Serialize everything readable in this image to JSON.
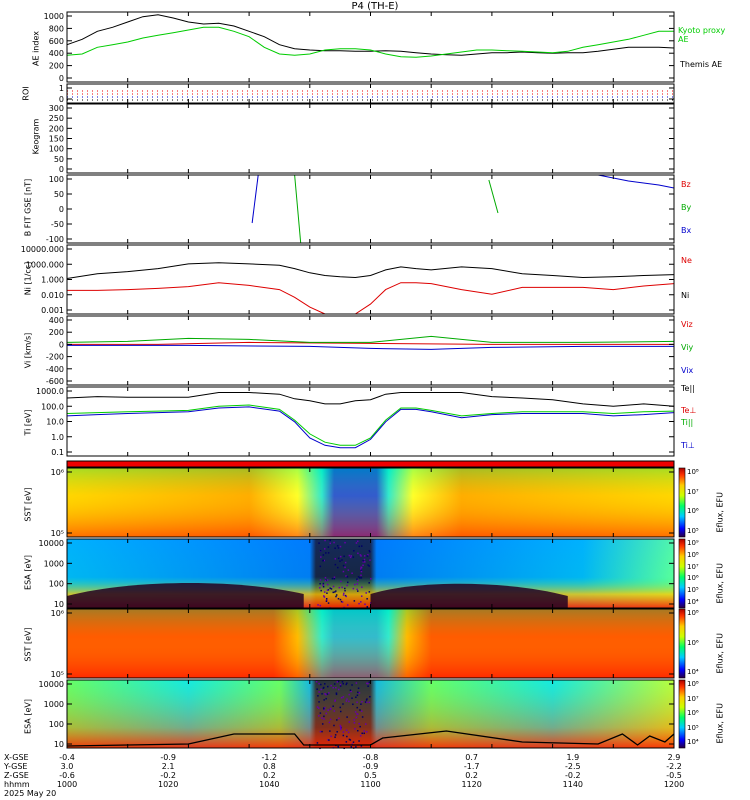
{
  "title": "P4 (TH-E)",
  "date_label": "2025 May 20",
  "chart_data": [
    {
      "type": "line",
      "panel": "ae",
      "ylabel": "AE index",
      "yticks": [
        "1000",
        "800",
        "600",
        "400",
        "200",
        "0"
      ],
      "ylim": [
        0,
        1050
      ],
      "x": [
        0,
        5,
        10,
        15,
        20,
        25,
        30,
        35,
        40,
        45,
        50,
        55,
        60,
        65,
        70,
        75,
        80,
        85,
        90,
        95,
        100,
        105,
        110,
        115,
        120,
        125,
        130,
        135,
        140,
        145,
        150,
        155,
        160,
        165,
        170,
        175,
        180,
        185,
        190,
        195,
        200
      ],
      "series": [
        {
          "name": "Themis AE",
          "color": "#000000",
          "values": [
            560,
            640,
            760,
            820,
            900,
            980,
            1010,
            960,
            900,
            870,
            880,
            840,
            760,
            680,
            560,
            500,
            480,
            470,
            470,
            460,
            460,
            470,
            460,
            440,
            420,
            410,
            400,
            420,
            440,
            440,
            450,
            440,
            430,
            440,
            440,
            460,
            490,
            520,
            520,
            520,
            510
          ]
        },
        {
          "name": "Kyoto proxy AE",
          "color": "#00cc00",
          "values": [
            400,
            420,
            520,
            560,
            600,
            660,
            700,
            740,
            780,
            820,
            820,
            760,
            680,
            520,
            420,
            400,
            420,
            480,
            500,
            500,
            480,
            420,
            380,
            370,
            390,
            420,
            450,
            480,
            480,
            470,
            460,
            450,
            440,
            460,
            520,
            560,
            600,
            640,
            700,
            760,
            760
          ]
        }
      ],
      "legend": [
        "Kyoto proxy AE",
        "Themis AE"
      ]
    },
    {
      "type": "scatter",
      "panel": "roi",
      "ylabel": "ROI",
      "yticks": [
        "1",
        "0"
      ]
    },
    {
      "type": "line",
      "panel": "keogram",
      "ylabel": "Keogram",
      "yticks": [
        "300",
        "250",
        "200",
        "150",
        "100",
        "50",
        "0"
      ]
    },
    {
      "type": "line",
      "panel": "bfield",
      "ylabel": "B FIT GSE [nT]",
      "yticks": [
        "100",
        "50",
        "0",
        "-50",
        "-100"
      ],
      "ylim": [
        -100,
        100
      ],
      "legend": [
        "Bz",
        "By",
        "Bx"
      ],
      "legend_colors": [
        "#dd0000",
        "#00aa00",
        "#0000cc"
      ]
    },
    {
      "type": "line",
      "panel": "density",
      "ylabel": "Ni [1/cc]",
      "yticks": [
        "10000.000",
        "1000.000",
        "1.000",
        "0.010",
        "0.001"
      ],
      "ylim_log": [
        0.001,
        10000
      ],
      "x": [
        0,
        10,
        20,
        30,
        40,
        50,
        60,
        70,
        75,
        80,
        85,
        90,
        95,
        100,
        105,
        110,
        115,
        120,
        130,
        140,
        150,
        160,
        170,
        180,
        190,
        200
      ],
      "series": [
        {
          "name": "Ni",
          "color": "#000000",
          "values": [
            4,
            12,
            20,
            40,
            120,
            160,
            120,
            90,
            40,
            15,
            8,
            6,
            5,
            8,
            30,
            60,
            40,
            30,
            60,
            40,
            12,
            8,
            5,
            6,
            8,
            10
          ]
        },
        {
          "name": "Ne",
          "color": "#dd0000",
          "values": [
            0.25,
            0.25,
            0.3,
            0.4,
            0.6,
            1.5,
            0.8,
            0.3,
            0.05,
            0.005,
            0.001,
            0.001,
            0.001,
            0.01,
            0.3,
            1.5,
            1.5,
            1.2,
            0.3,
            0.1,
            0.5,
            0.5,
            0.5,
            0.3,
            0.7,
            1.2
          ]
        }
      ],
      "legend": [
        "Ne",
        "Ni"
      ],
      "legend_colors": [
        "#dd0000",
        "#000000"
      ]
    },
    {
      "type": "line",
      "panel": "velocity",
      "ylabel": "Vi [km/s]",
      "yticks": [
        "400",
        "200",
        "0",
        "-200",
        "-400",
        "-600"
      ],
      "ylim": [
        -650,
        650
      ],
      "legend": [
        "Viz",
        "Viy",
        "Vix"
      ],
      "legend_colors": [
        "#dd0000",
        "#00aa00",
        "#0000cc"
      ]
    },
    {
      "type": "line",
      "panel": "temperature",
      "ylabel": "Ti [eV]",
      "yticks": [
        "1000.0",
        "100.0",
        "10.0",
        "1.0",
        "0.1"
      ],
      "ylim_log": [
        0.05,
        5000
      ],
      "x": [
        0,
        10,
        20,
        30,
        40,
        50,
        60,
        70,
        75,
        80,
        85,
        90,
        95,
        100,
        105,
        110,
        115,
        120,
        130,
        140,
        150,
        160,
        170,
        180,
        190,
        200
      ],
      "series": [
        {
          "name": "Te||",
          "color": "#000000",
          "values": [
            800,
            1000,
            900,
            900,
            900,
            2000,
            2000,
            1500,
            700,
            500,
            300,
            300,
            500,
            600,
            1500,
            2000,
            2000,
            2000,
            2000,
            1000,
            800,
            600,
            300,
            200,
            300,
            200
          ]
        },
        {
          "name": "Ti||",
          "color": "#00cc00",
          "values": [
            60,
            70,
            80,
            90,
            100,
            200,
            250,
            120,
            20,
            2,
            0.5,
            0.3,
            0.3,
            1,
            20,
            150,
            150,
            100,
            40,
            60,
            80,
            80,
            80,
            60,
            80,
            90
          ]
        },
        {
          "name": "Ti⊥",
          "color": "#0000cc",
          "values": [
            40,
            50,
            60,
            70,
            80,
            150,
            180,
            90,
            15,
            1,
            0.3,
            0.2,
            0.2,
            0.8,
            15,
            120,
            120,
            80,
            30,
            50,
            60,
            60,
            60,
            40,
            50,
            70
          ]
        }
      ],
      "legend": [
        "Te||",
        "Te⊥",
        "Ti||",
        "Ti⊥"
      ],
      "legend_colors": [
        "#000000",
        "#dd0000",
        "#00aa00",
        "#0000cc"
      ]
    },
    {
      "type": "heatmap",
      "panel": "sst_e",
      "ylabel": "SST [eV]",
      "yticks": [
        "10⁶",
        "10⁵"
      ],
      "colorbar": {
        "label": "Eflux, EFU",
        "ticks": [
          "10⁸",
          "10⁷",
          "10⁶",
          "10⁵"
        ]
      }
    },
    {
      "type": "heatmap",
      "panel": "esa_e",
      "ylabel": "ESA [eV]",
      "yticks": [
        "10000",
        "1000",
        "100",
        "10"
      ],
      "colorbar": {
        "label": "Eflux, EFU",
        "ticks": [
          "10⁹",
          "10⁸",
          "10⁷",
          "10⁶",
          "10⁵",
          "10⁴"
        ]
      }
    },
    {
      "type": "heatmap",
      "panel": "sst_i",
      "ylabel": "SST [eV]",
      "yticks": [
        "10⁶",
        "10⁵"
      ],
      "colorbar": {
        "label": "Eflux, EFU",
        "ticks": [
          "10⁸",
          "10⁶",
          "10⁴"
        ]
      }
    },
    {
      "type": "heatmap",
      "panel": "esa_i",
      "ylabel": "ESA [eV]",
      "yticks": [
        "10000",
        "1000",
        "100",
        "10"
      ],
      "colorbar": {
        "label": "Eflux, EFU",
        "ticks": [
          "10⁸",
          "10⁷",
          "10⁶",
          "10⁵",
          "10⁴"
        ]
      }
    }
  ],
  "xaxis": {
    "row_labels": [
      "X-GSE",
      "Y-GSE",
      "Z-GSE",
      "hhmm"
    ],
    "columns": [
      {
        "x": [
          "-0.4",
          "3.0",
          "-0.6",
          "1000"
        ]
      },
      {
        "x": [
          "-0.9",
          "2.1",
          "-0.2",
          "1020"
        ]
      },
      {
        "x": [
          "-1.2",
          "0.8",
          "0.2",
          "1040"
        ]
      },
      {
        "x": [
          "-0.8",
          "-0.9",
          "0.5",
          "1100"
        ]
      },
      {
        "x": [
          "0.7",
          "-1.7",
          "0.2",
          "1120"
        ]
      },
      {
        "x": [
          "1.9",
          "-2.5",
          "-0.2",
          "1140"
        ]
      },
      {
        "x": [
          "2.9",
          "-2.2",
          "-0.5",
          "1200"
        ]
      }
    ]
  }
}
